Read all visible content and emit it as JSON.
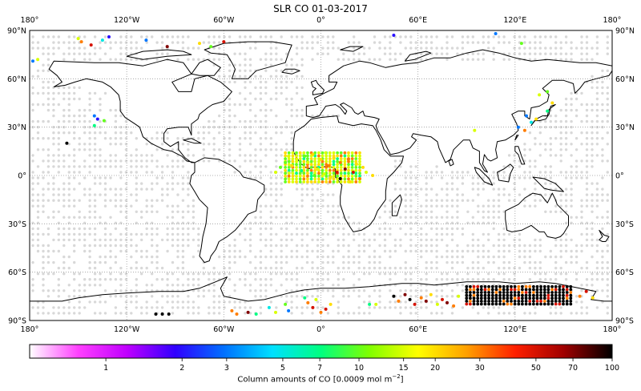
{
  "title": "SLR CO 01-03-2017",
  "map": {
    "lon_ticks": [
      "180°",
      "120°W",
      "60°W",
      "0°",
      "60°E",
      "120°E",
      "180°"
    ],
    "lat_ticks": [
      "90°N",
      "60°N",
      "30°N",
      "0°",
      "30°S",
      "60°S",
      "90°S"
    ],
    "lon_range": [
      -180,
      180
    ],
    "lat_range": [
      -90,
      90
    ],
    "grid": "dotted",
    "projection": "equirectangular",
    "no_data_color": "#d8d8d8"
  },
  "colorbar": {
    "label_prefix": "Column amounts of CO [0.0009 mol m",
    "label_exp": "−2",
    "label_suffix": "]",
    "tick_labels": [
      "1",
      "2",
      "3",
      "5",
      "7",
      "10",
      "15",
      "20",
      "30",
      "50",
      "70",
      "100"
    ],
    "ticks": [
      1,
      2,
      3,
      5,
      7,
      10,
      15,
      20,
      30,
      50,
      70,
      100
    ],
    "range": [
      0.5,
      100
    ],
    "scale": "log",
    "colors": [
      "#ffffff",
      "#ff40ff",
      "#c000ff",
      "#3000ff",
      "#0070ff",
      "#00e0ff",
      "#00ff80",
      "#80ff00",
      "#ffff00",
      "#ffa000",
      "#ff2000",
      "#a00000",
      "#000000"
    ]
  },
  "chart_data": {
    "type": "heatmap",
    "title": "SLR CO 01-03-2017",
    "xlabel": "",
    "ylabel": "",
    "colorbar_label": "Column amounts of CO [0.0009 mol m−2]",
    "scale": "log",
    "points": [
      {
        "lon": -150,
        "lat": 85,
        "value": 15
      },
      {
        "lon": -148,
        "lat": 83,
        "value": 30
      },
      {
        "lon": -142,
        "lat": 81,
        "value": 50
      },
      {
        "lon": -135,
        "lat": 84,
        "value": 5
      },
      {
        "lon": -131,
        "lat": 86,
        "value": 2
      },
      {
        "lon": -108,
        "lat": 84,
        "value": 3
      },
      {
        "lon": -95,
        "lat": 80,
        "value": 70
      },
      {
        "lon": -75,
        "lat": 82,
        "value": 20
      },
      {
        "lon": -68,
        "lat": 80,
        "value": 10
      },
      {
        "lon": -60,
        "lat": 83,
        "value": 50
      },
      {
        "lon": -175,
        "lat": 72,
        "value": 15
      },
      {
        "lon": -178,
        "lat": 71,
        "value": 3
      },
      {
        "lon": -140,
        "lat": 37,
        "value": 3
      },
      {
        "lon": -138,
        "lat": 35,
        "value": 2
      },
      {
        "lon": -140,
        "lat": 31,
        "value": 7
      },
      {
        "lon": -134,
        "lat": 34,
        "value": 10
      },
      {
        "lon": -157,
        "lat": 20,
        "value": 100
      },
      {
        "lon": 45,
        "lat": 87,
        "value": 2
      },
      {
        "lon": 108,
        "lat": 88,
        "value": 3
      },
      {
        "lon": 124,
        "lat": 82,
        "value": 10
      },
      {
        "lon": 135,
        "lat": 50,
        "value": 15
      },
      {
        "lon": 140,
        "lat": 52,
        "value": 10
      },
      {
        "lon": 143,
        "lat": 45,
        "value": 20
      },
      {
        "lon": 140,
        "lat": 40,
        "value": 7
      },
      {
        "lon": 127,
        "lat": 37,
        "value": 3
      },
      {
        "lon": 130,
        "lat": 33,
        "value": 5
      },
      {
        "lon": 133,
        "lat": 35,
        "value": 20
      },
      {
        "lon": 122,
        "lat": 30,
        "value": 3
      },
      {
        "lon": 126,
        "lat": 28,
        "value": 30
      },
      {
        "lon": 95,
        "lat": 28,
        "value": 15
      },
      {
        "lon": -28,
        "lat": 2,
        "value": 15
      },
      {
        "lon": -25,
        "lat": 5,
        "value": 10
      },
      {
        "lon": -22,
        "lat": 8,
        "value": 10
      },
      {
        "lon": -18,
        "lat": 6,
        "value": 20
      },
      {
        "lon": -15,
        "lat": 10,
        "value": 15
      },
      {
        "lon": -12,
        "lat": 3,
        "value": 7
      },
      {
        "lon": -8,
        "lat": 8,
        "value": 15
      },
      {
        "lon": -5,
        "lat": 13,
        "value": 20
      },
      {
        "lon": -2,
        "lat": 4,
        "value": 15
      },
      {
        "lon": 0,
        "lat": 10,
        "value": 20
      },
      {
        "lon": 3,
        "lat": 14,
        "value": 15
      },
      {
        "lon": 5,
        "lat": 6,
        "value": 30
      },
      {
        "lon": 8,
        "lat": 11,
        "value": 20
      },
      {
        "lon": 10,
        "lat": 2,
        "value": 50
      },
      {
        "lon": 12,
        "lat": 8,
        "value": 30
      },
      {
        "lon": 15,
        "lat": 4,
        "value": 70
      },
      {
        "lon": 17,
        "lat": 10,
        "value": 30
      },
      {
        "lon": 20,
        "lat": 2,
        "value": 50
      },
      {
        "lon": 22,
        "lat": 7,
        "value": 20
      },
      {
        "lon": 24,
        "lat": -2,
        "value": 30
      },
      {
        "lon": 26,
        "lat": 5,
        "value": 20
      },
      {
        "lon": 28,
        "lat": 2,
        "value": 15
      },
      {
        "lon": 18,
        "lat": -4,
        "value": 20
      },
      {
        "lon": 12,
        "lat": -2,
        "value": 100
      },
      {
        "lon": 6,
        "lat": -1,
        "value": 20
      },
      {
        "lon": -4,
        "lat": 0,
        "value": 10
      },
      {
        "lon": -20,
        "lat": 12,
        "value": 15
      },
      {
        "lon": -10,
        "lat": 12,
        "value": 10
      },
      {
        "lon": 2,
        "lat": 1,
        "value": 15
      },
      {
        "lon": 32,
        "lat": 0,
        "value": 20
      },
      {
        "lon": -10,
        "lat": -76,
        "value": 7
      },
      {
        "lon": -8,
        "lat": -79,
        "value": 30
      },
      {
        "lon": -5,
        "lat": -82,
        "value": 50
      },
      {
        "lon": -3,
        "lat": -77,
        "value": 15
      },
      {
        "lon": 0,
        "lat": -85,
        "value": 30
      },
      {
        "lon": 3,
        "lat": -83,
        "value": 50
      },
      {
        "lon": 6,
        "lat": -80,
        "value": 20
      },
      {
        "lon": -22,
        "lat": -80,
        "value": 10
      },
      {
        "lon": -20,
        "lat": -84,
        "value": 3
      },
      {
        "lon": -28,
        "lat": -85,
        "value": 15
      },
      {
        "lon": -32,
        "lat": -82,
        "value": 5
      },
      {
        "lon": -40,
        "lat": -86,
        "value": 7
      },
      {
        "lon": -45,
        "lat": -85,
        "value": 70
      },
      {
        "lon": -52,
        "lat": -86,
        "value": 30
      },
      {
        "lon": -55,
        "lat": -84,
        "value": 30
      },
      {
        "lon": -102,
        "lat": -86,
        "value": 100
      },
      {
        "lon": -98,
        "lat": -86,
        "value": 100
      },
      {
        "lon": -94,
        "lat": -86,
        "value": 100
      },
      {
        "lon": 30,
        "lat": -80,
        "value": 7
      },
      {
        "lon": 34,
        "lat": -80,
        "value": 15
      },
      {
        "lon": 45,
        "lat": -75,
        "value": 100
      },
      {
        "lon": 48,
        "lat": -78,
        "value": 30
      },
      {
        "lon": 52,
        "lat": -74,
        "value": 70
      },
      {
        "lon": 55,
        "lat": -77,
        "value": 100
      },
      {
        "lon": 58,
        "lat": -80,
        "value": 50
      },
      {
        "lon": 62,
        "lat": -76,
        "value": 30
      },
      {
        "lon": 65,
        "lat": -78,
        "value": 70
      },
      {
        "lon": 68,
        "lat": -74,
        "value": 20
      },
      {
        "lon": 72,
        "lat": -80,
        "value": 15
      },
      {
        "lon": 75,
        "lat": -77,
        "value": 50
      },
      {
        "lon": 78,
        "lat": -79,
        "value": 70
      },
      {
        "lon": 82,
        "lat": -81,
        "value": 30
      },
      {
        "lon": 85,
        "lat": -75,
        "value": 15
      },
      {
        "lon": 160,
        "lat": -75,
        "value": 30
      },
      {
        "lon": 164,
        "lat": -72,
        "value": 50
      },
      {
        "lon": 168,
        "lat": -76,
        "value": 20
      }
    ],
    "dense_regions": [
      {
        "lon_range": [
          90,
          155
        ],
        "lat_range": [
          -80,
          -69
        ],
        "value": 100
      },
      {
        "lon_range": [
          -22,
          25
        ],
        "lat_range": [
          -5,
          14
        ],
        "value": 15
      }
    ]
  }
}
